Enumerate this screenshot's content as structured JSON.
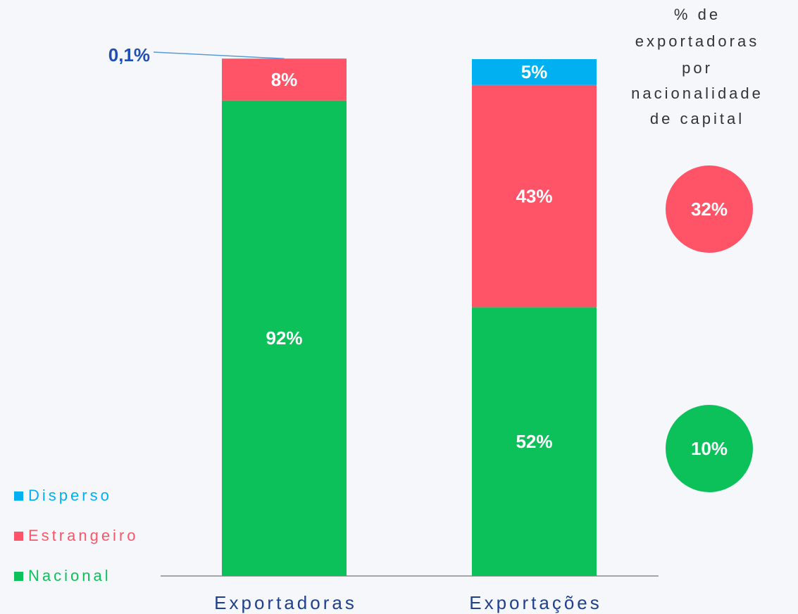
{
  "chart_data": {
    "type": "stacked_bar",
    "categories": [
      "Exportadoras",
      "Exportações"
    ],
    "ylim": [
      0,
      100
    ],
    "series": [
      {
        "name": "Nacional",
        "color": "#0dc15a",
        "values": [
          92,
          52
        ],
        "value_labels": [
          "92%",
          "52%"
        ]
      },
      {
        "name": "Estrangeiro",
        "color": "#ff5467",
        "values": [
          8,
          43
        ],
        "value_labels": [
          "8%",
          "43%"
        ]
      },
      {
        "name": "Disperso",
        "color": "#00b0f0",
        "values": [
          0.1,
          5
        ],
        "value_labels": [
          "0,1%",
          "5%"
        ]
      }
    ],
    "annotation": [
      "% de",
      "exportadoras",
      "por",
      "nacionalidade",
      "de capital"
    ],
    "circles": [
      {
        "value": 32,
        "label": "32%",
        "color": "#ff5467"
      },
      {
        "value": 10,
        "label": "10%",
        "color": "#0dc15a"
      }
    ]
  }
}
